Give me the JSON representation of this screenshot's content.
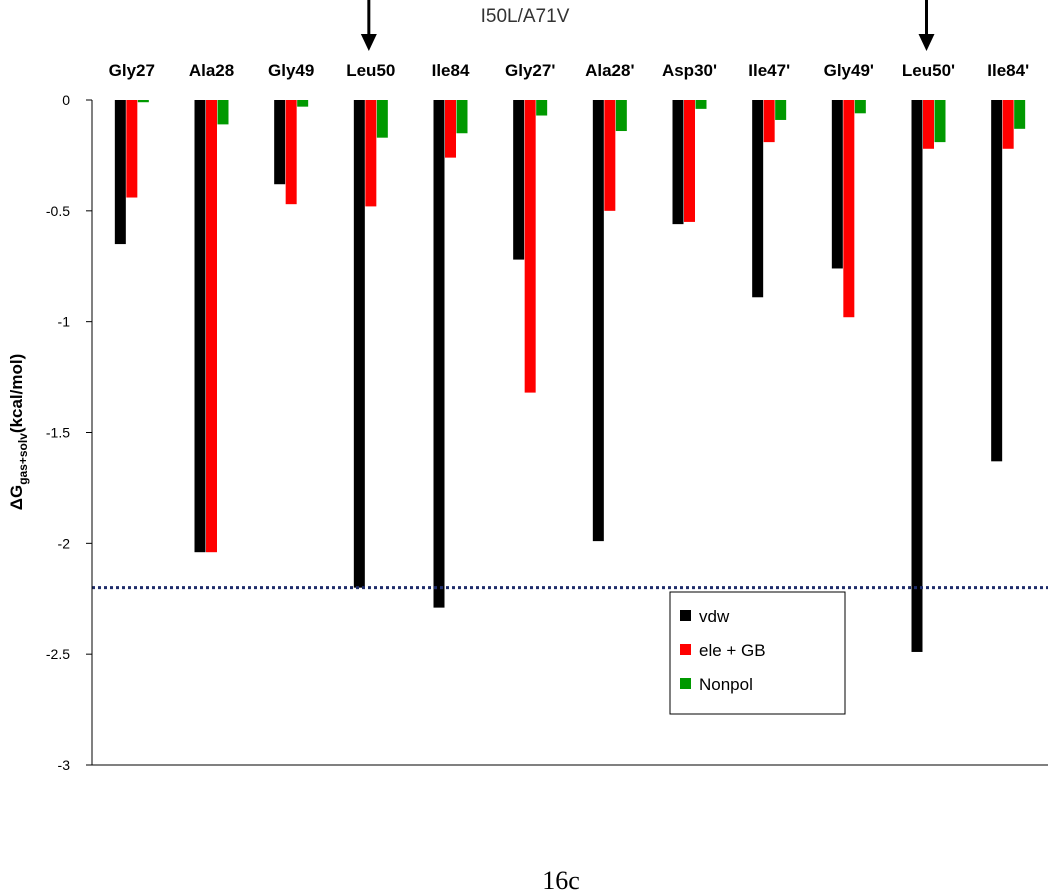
{
  "figure_label": "16c",
  "chart_data": {
    "type": "bar",
    "title": "I50L/A71V",
    "ylabel_delta": "ΔG",
    "ylabel_sub": "gas+solv",
    "ylabel_unit": "(kcal/mol)",
    "xlabel": "",
    "categories": [
      "Gly27",
      "Ala28",
      "Gly49",
      "Leu50",
      "Ile84",
      "Gly27'",
      "Ala28'",
      "Asp30'",
      "Ile47'",
      "Gly49'",
      "Leu50'",
      "Ile84'"
    ],
    "series": [
      {
        "name": "vdw",
        "color": "#000000",
        "values": [
          -0.65,
          -2.04,
          -0.38,
          -2.2,
          -2.29,
          -0.72,
          -1.99,
          -0.56,
          -0.89,
          -0.76,
          -2.49,
          -1.63
        ]
      },
      {
        "name": "ele + GB",
        "color": "#ff0000",
        "values": [
          -0.44,
          -2.04,
          -0.47,
          -0.48,
          -0.26,
          -1.32,
          -0.5,
          -0.55,
          -0.19,
          -0.98,
          -0.22,
          -0.22
        ]
      },
      {
        "name": "Nonpol",
        "color": "#009900",
        "values": [
          -0.01,
          -0.11,
          -0.03,
          -0.17,
          -0.15,
          -0.07,
          -0.14,
          -0.04,
          -0.09,
          -0.06,
          -0.19,
          -0.13
        ]
      }
    ],
    "ylim": [
      -3,
      0
    ],
    "yticks": [
      0,
      -0.5,
      -1,
      -1.5,
      -2,
      -2.5,
      -3
    ],
    "ytick_labels": [
      "0",
      "-0.5",
      "-1",
      "-1.5",
      "-2",
      "-2.5",
      "-3"
    ],
    "reference_line": {
      "value": -2.2,
      "style": "dotted",
      "color": "#1f2d6b"
    },
    "arrows_at": [
      "Leu50",
      "Leu50'"
    ],
    "legend_position": "bottom-right",
    "grid": false
  }
}
